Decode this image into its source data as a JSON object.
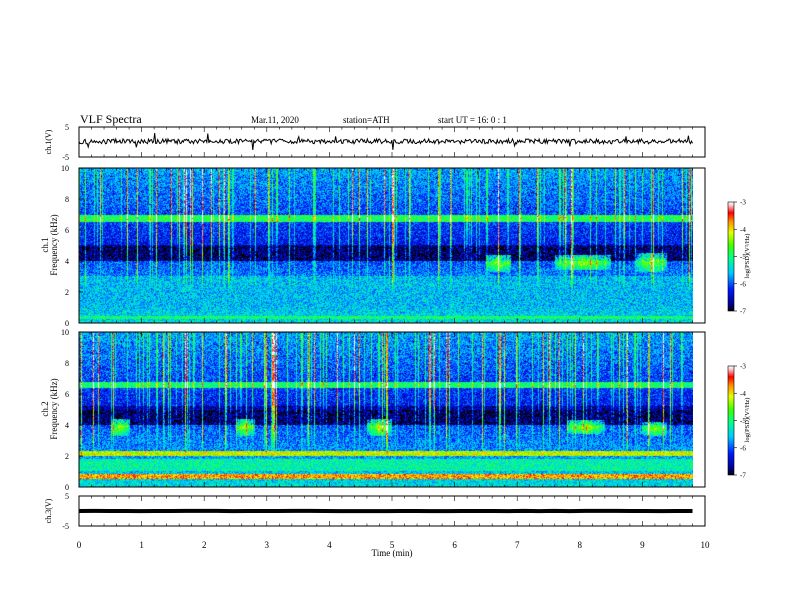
{
  "header": {
    "title": "VLF Spectra",
    "date": "Mar.11, 2020",
    "station": "station=ATH",
    "start": "start  UT  =   16: 0  : 1"
  },
  "chart_data": [
    {
      "type": "line",
      "panel": "ch1-waveform",
      "ylabel": "ch.1(V)",
      "ylim": [
        -5,
        5
      ],
      "yticks": [
        "5",
        "-5"
      ],
      "xlim": [
        0,
        10
      ],
      "series_color": "#000000",
      "baseline_v": 0.2,
      "noise_amplitude_v": 0.8
    },
    {
      "type": "heatmap",
      "panel": "ch1-spectrogram",
      "ylabel_line1": "ch.1",
      "ylabel_line2": "Frequency  (kHz)",
      "ylim": [
        0,
        10
      ],
      "yticks": [
        "0",
        "2",
        "4",
        "6",
        "8",
        "10"
      ],
      "xlim": [
        0,
        10
      ],
      "data_end_min": 9.8,
      "colorbar": {
        "label": "log(PSD)(V²/Hz)",
        "ticks": [
          "-3",
          "-4",
          "-5",
          "-6",
          "-7"
        ],
        "range": [
          -7,
          -3
        ]
      },
      "features": {
        "band_levels": [
          [
            6.5,
            7.0,
            -4.9
          ],
          [
            4.0,
            5.0,
            -6.6
          ],
          [
            1.0,
            3.0,
            -5.6
          ],
          [
            0.2,
            0.4,
            -5.0
          ]
        ],
        "emissions_min": [
          [
            6.5,
            6.9,
            3.3,
            4.4
          ],
          [
            7.6,
            8.5,
            3.4,
            4.4
          ],
          [
            8.9,
            9.4,
            3.3,
            4.5
          ]
        ]
      }
    },
    {
      "type": "heatmap",
      "panel": "ch2-spectrogram",
      "ylabel_line1": "ch.2",
      "ylabel_line2": "Frequency  (kHz)",
      "ylim": [
        0,
        10
      ],
      "yticks": [
        "0",
        "2",
        "4",
        "6",
        "8",
        "10"
      ],
      "xlim": [
        0,
        10
      ],
      "data_end_min": 9.8,
      "colorbar": {
        "label": "log(PSD)(V²/Hz)",
        "ticks": [
          "-3",
          "-4",
          "-5",
          "-6",
          "-7"
        ],
        "range": [
          -7,
          -3
        ]
      },
      "features": {
        "band_levels": [
          [
            6.4,
            6.8,
            -5.0
          ],
          [
            4.0,
            5.2,
            -6.6
          ],
          [
            2.0,
            2.3,
            -4.2
          ],
          [
            1.0,
            1.8,
            -5.2
          ],
          [
            0.5,
            0.8,
            -3.8
          ]
        ],
        "emissions_min": [
          [
            0.5,
            0.8,
            3.3,
            4.4
          ],
          [
            2.5,
            2.8,
            3.3,
            4.4
          ],
          [
            4.6,
            5.0,
            3.3,
            4.4
          ],
          [
            7.8,
            8.4,
            3.4,
            4.3
          ],
          [
            9.0,
            9.4,
            3.3,
            4.2
          ]
        ]
      }
    },
    {
      "type": "line",
      "panel": "ch3-waveform",
      "ylabel": "ch.3(V)",
      "ylim": [
        -5,
        5
      ],
      "yticks": [
        "5",
        "-5"
      ],
      "xlim": [
        0,
        10
      ],
      "xticks": [
        "0",
        "1",
        "2",
        "3",
        "4",
        "5",
        "6",
        "7",
        "8",
        "9",
        "10"
      ],
      "xlabel": "Time  (min)",
      "series_color": "#000000",
      "baseline_v": 0.0,
      "noise_amplitude_v": 0.05
    }
  ]
}
